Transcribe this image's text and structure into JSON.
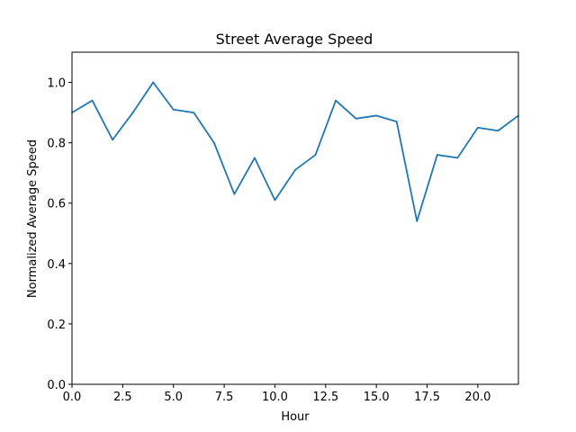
{
  "chart_data": {
    "type": "line",
    "title": "Street Average Speed",
    "xlabel": "Hour",
    "ylabel": "Normalized Average Speed",
    "xlim": [
      0,
      22
    ],
    "ylim": [
      0,
      1.1
    ],
    "x_ticks": [
      "0.0",
      "2.5",
      "5.0",
      "7.5",
      "10.0",
      "12.5",
      "15.0",
      "17.5",
      "20.0"
    ],
    "x_tick_values": [
      0,
      2.5,
      5,
      7.5,
      10,
      12.5,
      15,
      17.5,
      20
    ],
    "y_ticks": [
      "0.0",
      "0.2",
      "0.4",
      "0.6",
      "0.8",
      "1.0"
    ],
    "y_tick_values": [
      0,
      0.2,
      0.4,
      0.6,
      0.8,
      1.0
    ],
    "grid": false,
    "line_color": "#1f77b4",
    "series": [
      {
        "x": [
          0,
          1,
          2,
          3,
          4,
          5,
          6,
          7,
          8,
          9,
          10,
          11,
          12,
          13,
          14,
          15,
          16,
          17,
          18,
          19,
          20,
          21,
          22
        ],
        "values": [
          0.9,
          0.94,
          0.81,
          0.9,
          1.0,
          0.91,
          0.9,
          0.8,
          0.63,
          0.75,
          0.61,
          0.71,
          0.76,
          0.94,
          0.88,
          0.89,
          0.87,
          0.54,
          0.76,
          0.75,
          0.85,
          0.84,
          0.89
        ]
      }
    ]
  }
}
